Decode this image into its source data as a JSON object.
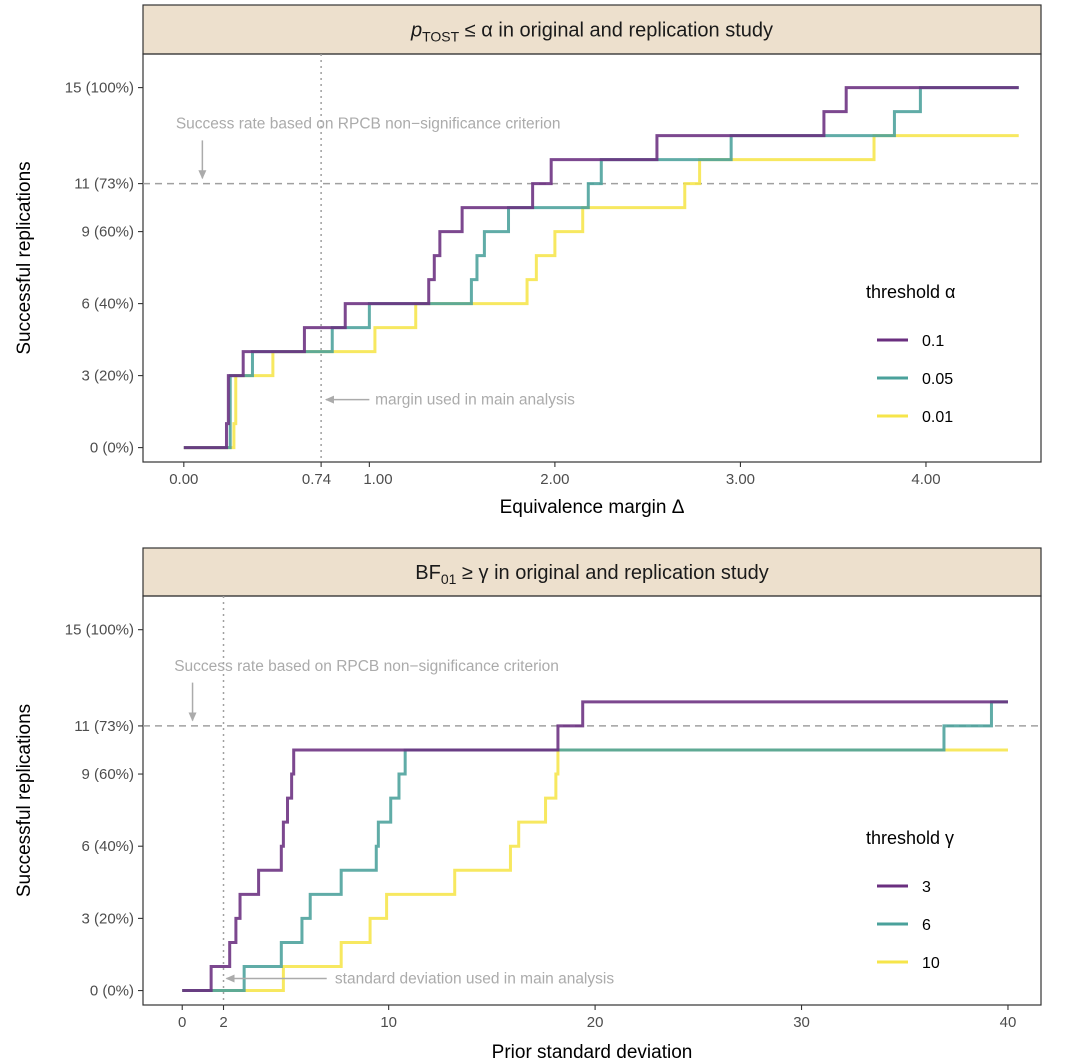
{
  "colors": {
    "strip_bg": "#ede0cd",
    "ref_line": "#a0a0a0",
    "annotation": "#ababab",
    "series": [
      "#6a2f7f",
      "#4aa19b",
      "#f6e54a"
    ]
  },
  "chart_data": [
    {
      "type": "line",
      "line_shape": "step",
      "strip": {
        "prefix": "p",
        "sub": "TOST",
        "suffix": " ≤ α in original and replication study"
      },
      "ylabel": "Successful replications",
      "xlabel": "Equivalence margin Δ",
      "xlim": [
        -0.22,
        4.62
      ],
      "ylim": [
        -0.6,
        16.4
      ],
      "x_ticks": [
        {
          "value": 0,
          "label": "0.00"
        },
        {
          "value": 0.74,
          "label": "0.74"
        },
        {
          "value": 1,
          "label": "1.00"
        },
        {
          "value": 2,
          "label": "2.00"
        },
        {
          "value": 3,
          "label": "3.00"
        },
        {
          "value": 4,
          "label": "4.00"
        }
      ],
      "y_ticks": [
        {
          "value": 0,
          "label": "0 (0%)"
        },
        {
          "value": 3,
          "label": "3 (20%)"
        },
        {
          "value": 6,
          "label": "6 (40%)"
        },
        {
          "value": 9,
          "label": "9 (60%)"
        },
        {
          "value": 11,
          "label": "11 (73%)"
        },
        {
          "value": 15,
          "label": "15 (100%)"
        }
      ],
      "hline": 11,
      "vline": 0.74,
      "annotations": {
        "success_text": "Success rate based on RPCB non−significance criterion",
        "success_text_x": 0.0,
        "success_text_y": 13.5,
        "success_arrow_x": 0.1,
        "success_arrow_from": 12.8,
        "success_arrow_to": 11.1,
        "margin_text": "margin used in main analysis",
        "margin_text_x": 1.02,
        "margin_text_y": 2.0,
        "margin_arrow_from": 1.0,
        "margin_arrow_to": 0.75,
        "margin_arrow_y": 2.0
      },
      "legend": {
        "title": "threshold α",
        "position": "right"
      },
      "series": [
        {
          "name": "0.1",
          "points": [
            [
              0,
              0
            ],
            [
              0.23,
              0
            ],
            [
              0.23,
              1
            ],
            [
              0.24,
              1
            ],
            [
              0.24,
              3
            ],
            [
              0.32,
              3
            ],
            [
              0.32,
              4
            ],
            [
              0.65,
              4
            ],
            [
              0.65,
              5
            ],
            [
              0.87,
              5
            ],
            [
              0.87,
              6
            ],
            [
              1.32,
              6
            ],
            [
              1.32,
              7
            ],
            [
              1.35,
              7
            ],
            [
              1.35,
              8
            ],
            [
              1.38,
              8
            ],
            [
              1.38,
              9
            ],
            [
              1.5,
              9
            ],
            [
              1.5,
              10
            ],
            [
              1.88,
              10
            ],
            [
              1.88,
              11
            ],
            [
              1.98,
              11
            ],
            [
              1.98,
              12
            ],
            [
              2.55,
              12
            ],
            [
              2.55,
              13
            ],
            [
              3.45,
              13
            ],
            [
              3.45,
              14
            ],
            [
              3.57,
              14
            ],
            [
              3.57,
              15
            ],
            [
              4.5,
              15
            ]
          ]
        },
        {
          "name": "0.05",
          "points": [
            [
              0,
              0
            ],
            [
              0.25,
              0
            ],
            [
              0.25,
              3
            ],
            [
              0.37,
              3
            ],
            [
              0.37,
              4
            ],
            [
              0.8,
              4
            ],
            [
              0.8,
              5
            ],
            [
              1.0,
              5
            ],
            [
              1.0,
              6
            ],
            [
              1.55,
              6
            ],
            [
              1.55,
              7
            ],
            [
              1.58,
              7
            ],
            [
              1.58,
              8
            ],
            [
              1.62,
              8
            ],
            [
              1.62,
              9
            ],
            [
              1.75,
              9
            ],
            [
              1.75,
              10
            ],
            [
              2.18,
              10
            ],
            [
              2.18,
              11
            ],
            [
              2.25,
              11
            ],
            [
              2.25,
              12
            ],
            [
              2.95,
              12
            ],
            [
              2.95,
              13
            ],
            [
              3.83,
              13
            ],
            [
              3.83,
              14
            ],
            [
              3.97,
              14
            ],
            [
              3.97,
              15
            ],
            [
              4.5,
              15
            ]
          ]
        },
        {
          "name": "0.01",
          "points": [
            [
              0,
              0
            ],
            [
              0.27,
              0
            ],
            [
              0.27,
              1
            ],
            [
              0.28,
              1
            ],
            [
              0.28,
              3
            ],
            [
              0.48,
              3
            ],
            [
              0.48,
              4
            ],
            [
              1.03,
              4
            ],
            [
              1.03,
              5
            ],
            [
              1.25,
              5
            ],
            [
              1.25,
              6
            ],
            [
              1.85,
              6
            ],
            [
              1.85,
              7
            ],
            [
              1.9,
              7
            ],
            [
              1.9,
              8
            ],
            [
              2.0,
              8
            ],
            [
              2.0,
              9
            ],
            [
              2.15,
              9
            ],
            [
              2.15,
              10
            ],
            [
              2.7,
              10
            ],
            [
              2.7,
              11
            ],
            [
              2.78,
              11
            ],
            [
              2.78,
              12
            ],
            [
              3.72,
              12
            ],
            [
              3.72,
              13
            ],
            [
              4.5,
              13
            ]
          ]
        }
      ]
    },
    {
      "type": "line",
      "line_shape": "step",
      "strip": {
        "prefix": "BF",
        "sub": "01",
        "suffix": " ≥ γ in original and replication study"
      },
      "ylabel": "Successful replications",
      "xlabel": "Prior standard deviation",
      "xlim": [
        -1.9,
        41.6
      ],
      "ylim": [
        -0.6,
        16.4
      ],
      "x_ticks": [
        {
          "value": 0,
          "label": "0"
        },
        {
          "value": 2,
          "label": "2"
        },
        {
          "value": 10,
          "label": "10"
        },
        {
          "value": 20,
          "label": "20"
        },
        {
          "value": 30,
          "label": "30"
        },
        {
          "value": 40,
          "label": "40"
        }
      ],
      "y_ticks": [
        {
          "value": 0,
          "label": "0 (0%)"
        },
        {
          "value": 3,
          "label": "3 (20%)"
        },
        {
          "value": 6,
          "label": "6 (40%)"
        },
        {
          "value": 9,
          "label": "9 (60%)"
        },
        {
          "value": 11,
          "label": "11 (73%)"
        },
        {
          "value": 15,
          "label": "15 (100%)"
        }
      ],
      "hline": 11,
      "vline": 2,
      "annotations": {
        "success_text": "Success rate based on RPCB non−significance criterion",
        "success_text_x": 0.0,
        "success_text_y": 13.5,
        "success_arrow_x": 0.5,
        "success_arrow_from": 12.8,
        "success_arrow_to": 11.1,
        "margin_text": "standard deviation used in main analysis",
        "margin_text_x": 7.3,
        "margin_text_y": 0.5,
        "margin_arrow_from": 7.0,
        "margin_arrow_to": 2.0,
        "margin_arrow_y": 0.5
      },
      "legend": {
        "title": "threshold γ",
        "position": "right"
      },
      "series": [
        {
          "name": "3",
          "points": [
            [
              0,
              0
            ],
            [
              1.4,
              0
            ],
            [
              1.4,
              1
            ],
            [
              2.3,
              1
            ],
            [
              2.3,
              2
            ],
            [
              2.6,
              2
            ],
            [
              2.6,
              3
            ],
            [
              2.8,
              3
            ],
            [
              2.8,
              4
            ],
            [
              3.7,
              4
            ],
            [
              3.7,
              5
            ],
            [
              4.8,
              5
            ],
            [
              4.8,
              6
            ],
            [
              4.9,
              6
            ],
            [
              4.9,
              7
            ],
            [
              5.1,
              7
            ],
            [
              5.1,
              8
            ],
            [
              5.3,
              8
            ],
            [
              5.3,
              9
            ],
            [
              5.4,
              9
            ],
            [
              5.4,
              10
            ],
            [
              18.2,
              10
            ],
            [
              18.2,
              11
            ],
            [
              19.4,
              11
            ],
            [
              19.4,
              12
            ],
            [
              40,
              12
            ]
          ]
        },
        {
          "name": "6",
          "points": [
            [
              0,
              0
            ],
            [
              3,
              0
            ],
            [
              3,
              1
            ],
            [
              4.8,
              1
            ],
            [
              4.8,
              2
            ],
            [
              5.8,
              2
            ],
            [
              5.8,
              3
            ],
            [
              6.2,
              3
            ],
            [
              6.2,
              4
            ],
            [
              7.7,
              4
            ],
            [
              7.7,
              5
            ],
            [
              9.4,
              5
            ],
            [
              9.4,
              6
            ],
            [
              9.5,
              6
            ],
            [
              9.5,
              7
            ],
            [
              10.1,
              7
            ],
            [
              10.1,
              8
            ],
            [
              10.5,
              8
            ],
            [
              10.5,
              9
            ],
            [
              10.8,
              9
            ],
            [
              10.8,
              10
            ],
            [
              36.9,
              10
            ],
            [
              36.9,
              11
            ],
            [
              39.2,
              11
            ],
            [
              39.2,
              12
            ],
            [
              40,
              12
            ]
          ]
        },
        {
          "name": "10",
          "points": [
            [
              0,
              0
            ],
            [
              4.9,
              0
            ],
            [
              4.9,
              1
            ],
            [
              7.7,
              1
            ],
            [
              7.7,
              2
            ],
            [
              9.1,
              2
            ],
            [
              9.1,
              3
            ],
            [
              9.9,
              3
            ],
            [
              9.9,
              4
            ],
            [
              13.2,
              4
            ],
            [
              13.2,
              5
            ],
            [
              15.9,
              5
            ],
            [
              15.9,
              6
            ],
            [
              16.3,
              6
            ],
            [
              16.3,
              7
            ],
            [
              17.6,
              7
            ],
            [
              17.6,
              8
            ],
            [
              18.1,
              8
            ],
            [
              18.1,
              9
            ],
            [
              18.2,
              9
            ],
            [
              18.2,
              10
            ],
            [
              40,
              10
            ]
          ]
        }
      ]
    }
  ]
}
